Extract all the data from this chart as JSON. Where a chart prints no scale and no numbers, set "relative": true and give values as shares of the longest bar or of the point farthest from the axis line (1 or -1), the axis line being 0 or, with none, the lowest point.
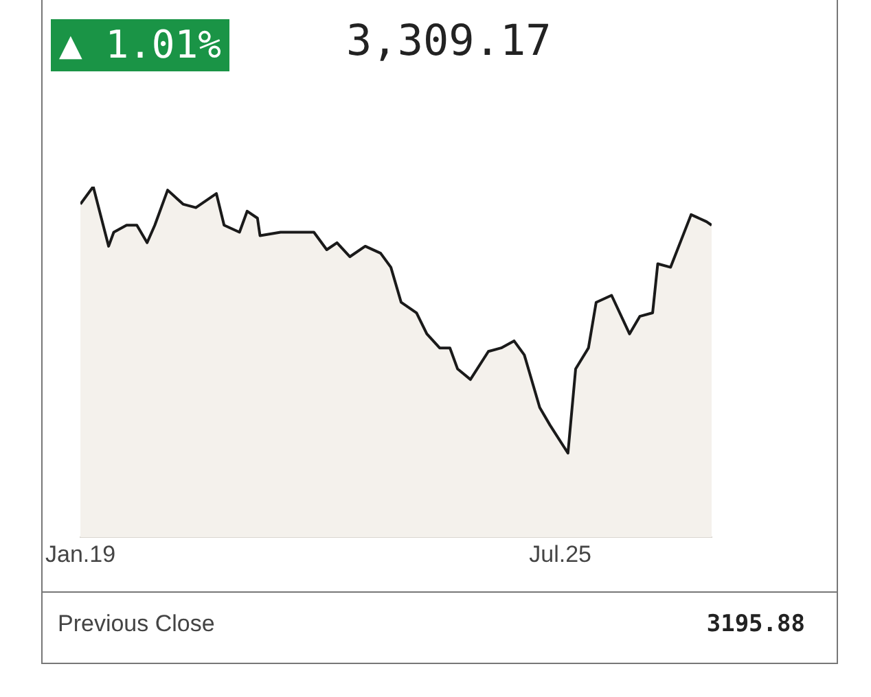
{
  "chart_data": {
    "type": "area",
    "relative": true,
    "legend": false,
    "annotations": [
      "▲ 1.01%",
      "3,309.17",
      "Previous Close",
      "3195.88"
    ],
    "xlim": [
      "--01-19",
      "--09-22"
    ],
    "xticks": [
      {
        "value": "--01-19",
        "label": "Jan.19"
      },
      {
        "value": "--07-25",
        "label": "Jul.25"
      }
    ],
    "series": [
      {
        "color": "#1a1a1a",
        "x": [
          "--01-19",
          "--01-24",
          "--01-30",
          "--02-01",
          "--02-06",
          "--02-10",
          "--02-14",
          "--02-17",
          "--02-22",
          "--02-28",
          "--03-05",
          "--03-13",
          "--03-16",
          "--03-22",
          "--03-25",
          "--03-29",
          "--03-30",
          "--04-07",
          "--04-14",
          "--04-20",
          "--04-25",
          "--04-29",
          "--05-04",
          "--05-10",
          "--05-16",
          "--05-20",
          "--05-24",
          "--05-30",
          "--06-03",
          "--06-08",
          "--06-12",
          "--06-15",
          "--06-20",
          "--06-27",
          "--07-02",
          "--07-07",
          "--07-11",
          "--07-17",
          "--07-21",
          "--07-28",
          "--07-31",
          "--08-05",
          "--08-08",
          "--08-14",
          "--08-21",
          "--08-25",
          "--08-30",
          "--09-01",
          "--09-06",
          "--09-14",
          "--09-20",
          "--09-22"
        ],
        "values": [
          0.95,
          1.0,
          0.83,
          0.87,
          0.89,
          0.89,
          0.84,
          0.89,
          0.99,
          0.95,
          0.94,
          0.98,
          0.89,
          0.87,
          0.93,
          0.91,
          0.86,
          0.87,
          0.87,
          0.87,
          0.82,
          0.84,
          0.8,
          0.83,
          0.81,
          0.77,
          0.67,
          0.64,
          0.58,
          0.54,
          0.54,
          0.48,
          0.45,
          0.53,
          0.54,
          0.56,
          0.52,
          0.37,
          0.32,
          0.24,
          0.48,
          0.54,
          0.67,
          0.69,
          0.58,
          0.63,
          0.64,
          0.78,
          0.77,
          0.92,
          0.9,
          0.89
        ]
      }
    ]
  }
}
